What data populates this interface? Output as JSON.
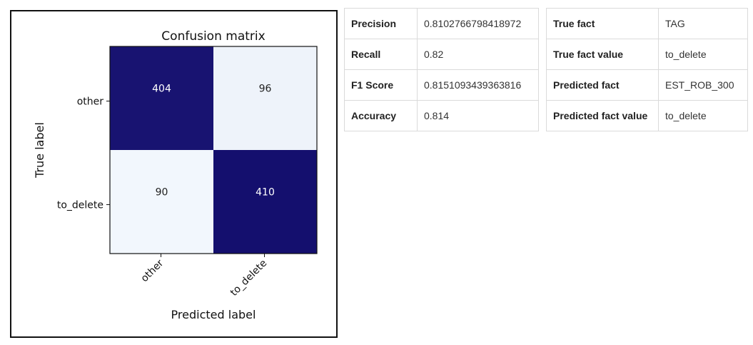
{
  "chart_data": {
    "type": "heatmap",
    "title": "Confusion matrix",
    "xlabel": "Predicted label",
    "ylabel": "True label",
    "x_categories": [
      "other",
      "to_delete"
    ],
    "y_categories": [
      "other",
      "to_delete"
    ],
    "values": [
      [
        404,
        96
      ],
      [
        90,
        410
      ]
    ],
    "colormap": "Blues",
    "high_color": "#140f6e",
    "low_color": "#f2f7fd"
  },
  "metrics_table": {
    "rows": [
      {
        "label": "Precision",
        "value": "0.8102766798418972"
      },
      {
        "label": "Recall",
        "value": "0.82"
      },
      {
        "label": "F1 Score",
        "value": "0.8151093439363816"
      },
      {
        "label": "Accuracy",
        "value": "0.814"
      }
    ]
  },
  "fact_table": {
    "rows": [
      {
        "label": "True fact",
        "value": "TAG"
      },
      {
        "label": "True fact value",
        "value": "to_delete"
      },
      {
        "label": "Predicted fact",
        "value": "EST_ROB_300"
      },
      {
        "label": "Predicted fact value",
        "value": "to_delete"
      }
    ]
  }
}
